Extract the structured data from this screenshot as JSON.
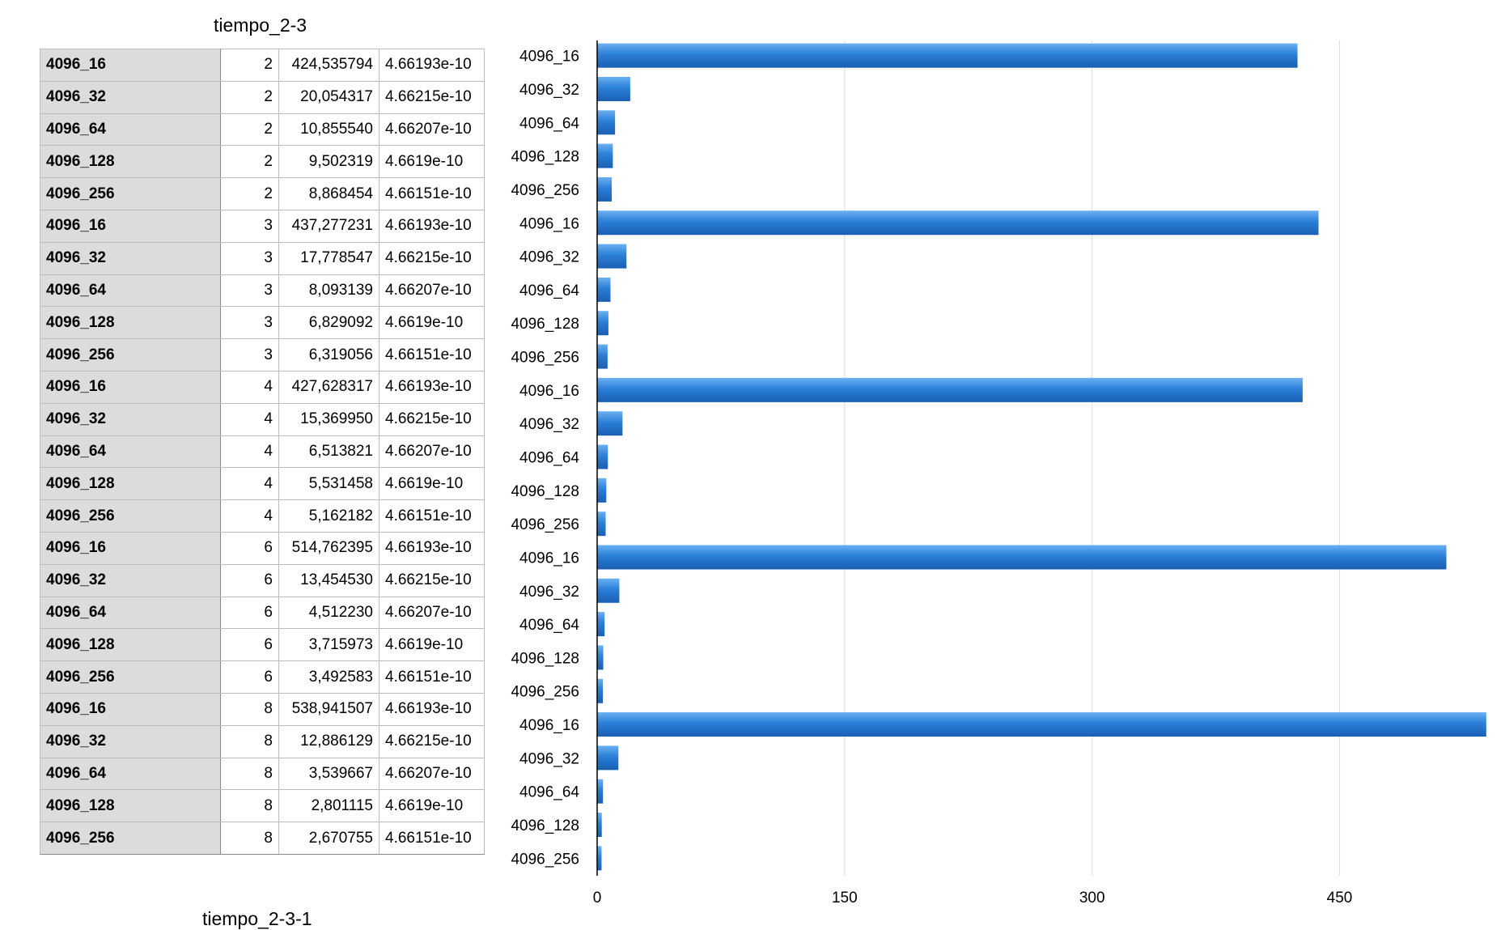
{
  "sheet": {
    "title": "tiempo_2-3",
    "next_title": "tiempo_2-3-1"
  },
  "table": {
    "rows": [
      {
        "label": "4096_16",
        "n": "2",
        "time": "424,535794",
        "error": "4.66193e-10"
      },
      {
        "label": "4096_32",
        "n": "2",
        "time": "20,054317",
        "error": "4.66215e-10"
      },
      {
        "label": "4096_64",
        "n": "2",
        "time": "10,855540",
        "error": "4.66207e-10"
      },
      {
        "label": "4096_128",
        "n": "2",
        "time": "9,502319",
        "error": "4.6619e-10"
      },
      {
        "label": "4096_256",
        "n": "2",
        "time": "8,868454",
        "error": "4.66151e-10"
      },
      {
        "label": "4096_16",
        "n": "3",
        "time": "437,277231",
        "error": "4.66193e-10"
      },
      {
        "label": "4096_32",
        "n": "3",
        "time": "17,778547",
        "error": "4.66215e-10"
      },
      {
        "label": "4096_64",
        "n": "3",
        "time": "8,093139",
        "error": "4.66207e-10"
      },
      {
        "label": "4096_128",
        "n": "3",
        "time": "6,829092",
        "error": "4.6619e-10"
      },
      {
        "label": "4096_256",
        "n": "3",
        "time": "6,319056",
        "error": "4.66151e-10"
      },
      {
        "label": "4096_16",
        "n": "4",
        "time": "427,628317",
        "error": "4.66193e-10"
      },
      {
        "label": "4096_32",
        "n": "4",
        "time": "15,369950",
        "error": "4.66215e-10"
      },
      {
        "label": "4096_64",
        "n": "4",
        "time": "6,513821",
        "error": "4.66207e-10"
      },
      {
        "label": "4096_128",
        "n": "4",
        "time": "5,531458",
        "error": "4.6619e-10"
      },
      {
        "label": "4096_256",
        "n": "4",
        "time": "5,162182",
        "error": "4.66151e-10"
      },
      {
        "label": "4096_16",
        "n": "6",
        "time": "514,762395",
        "error": "4.66193e-10"
      },
      {
        "label": "4096_32",
        "n": "6",
        "time": "13,454530",
        "error": "4.66215e-10"
      },
      {
        "label": "4096_64",
        "n": "6",
        "time": "4,512230",
        "error": "4.66207e-10"
      },
      {
        "label": "4096_128",
        "n": "6",
        "time": "3,715973",
        "error": "4.6619e-10"
      },
      {
        "label": "4096_256",
        "n": "6",
        "time": "3,492583",
        "error": "4.66151e-10"
      },
      {
        "label": "4096_16",
        "n": "8",
        "time": "538,941507",
        "error": "4.66193e-10"
      },
      {
        "label": "4096_32",
        "n": "8",
        "time": "12,886129",
        "error": "4.66215e-10"
      },
      {
        "label": "4096_64",
        "n": "8",
        "time": "3,539667",
        "error": "4.66207e-10"
      },
      {
        "label": "4096_128",
        "n": "8",
        "time": "2,801115",
        "error": "4.6619e-10"
      },
      {
        "label": "4096_256",
        "n": "8",
        "time": "2,670755",
        "error": "4.66151e-10"
      }
    ]
  },
  "chart_data": {
    "type": "bar",
    "orientation": "horizontal",
    "title": "",
    "xlabel": "",
    "ylabel": "",
    "categories": [
      "4096_16",
      "4096_32",
      "4096_64",
      "4096_128",
      "4096_256",
      "4096_16",
      "4096_32",
      "4096_64",
      "4096_128",
      "4096_256",
      "4096_16",
      "4096_32",
      "4096_64",
      "4096_128",
      "4096_256",
      "4096_16",
      "4096_32",
      "4096_64",
      "4096_128",
      "4096_256",
      "4096_16",
      "4096_32",
      "4096_64",
      "4096_128",
      "4096_256"
    ],
    "values": [
      424.535794,
      20.054317,
      10.85554,
      9.502319,
      8.868454,
      437.277231,
      17.778547,
      8.093139,
      6.829092,
      6.319056,
      427.628317,
      15.36995,
      6.513821,
      5.531458,
      5.162182,
      514.762395,
      13.45453,
      4.51223,
      3.715973,
      3.492583,
      538.941507,
      12.886129,
      3.539667,
      2.801115,
      2.670755
    ],
    "xlim": [
      0,
      540
    ],
    "x_ticks": [
      0,
      150,
      300,
      450
    ],
    "x_tick_labels": [
      "0",
      "150",
      "300",
      "450"
    ],
    "grid": true,
    "bar_color": "#2a7fd8"
  }
}
